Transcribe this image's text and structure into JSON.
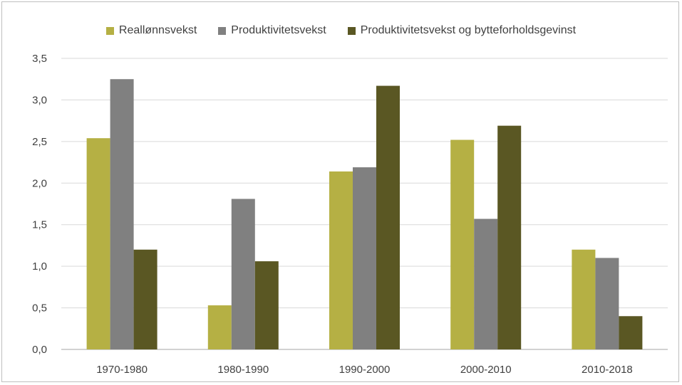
{
  "chart_data": {
    "type": "bar",
    "title": "",
    "xlabel": "",
    "ylabel": "",
    "ylim": [
      0,
      3.5
    ],
    "yticks": [
      "0,0",
      "0,5",
      "1,0",
      "1,5",
      "2,0",
      "2,5",
      "3,0",
      "3,5"
    ],
    "grid": true,
    "legend_position": "top",
    "categories": [
      "1970-1980",
      "1980-1990",
      "1990-2000",
      "2000-2010",
      "2010-2018"
    ],
    "series": [
      {
        "name": "Reallønnsvekst",
        "color": "#b5b044",
        "values": [
          2.54,
          0.53,
          2.14,
          2.52,
          1.2
        ]
      },
      {
        "name": "Produktivitetsvekst",
        "color": "#808080",
        "values": [
          3.25,
          1.81,
          2.19,
          1.57,
          1.1
        ]
      },
      {
        "name": "Produktivitetsvekst og bytteforholdsgevinst",
        "color": "#5a5723",
        "values": [
          1.2,
          1.06,
          3.17,
          2.69,
          0.4
        ]
      }
    ]
  }
}
